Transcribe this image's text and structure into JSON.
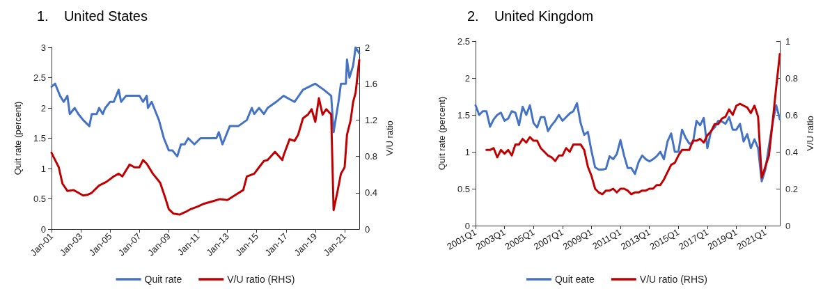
{
  "chart_data": [
    {
      "type": "line",
      "title": "1.    United States",
      "ylabel": "Quit rate (percent)",
      "y2label": "V/U ratio",
      "legend": "bottom",
      "grid": false,
      "marker": "none",
      "line_style": "solid",
      "xlim": [
        "2001-01",
        "2022-01"
      ],
      "xticks": [
        {
          "value": "2001-01",
          "label": "Jan-01"
        },
        {
          "value": "2003-01",
          "label": "Jan-03"
        },
        {
          "value": "2005-01",
          "label": "Jan-05"
        },
        {
          "value": "2007-01",
          "label": "Jan-07"
        },
        {
          "value": "2009-01",
          "label": "Jan-09"
        },
        {
          "value": "2011-01",
          "label": "Jan-11"
        },
        {
          "value": "2013-01",
          "label": "Jan-13"
        },
        {
          "value": "2015-01",
          "label": "Jan-15"
        },
        {
          "value": "2017-01",
          "label": "Jan-17"
        },
        {
          "value": "2019-01",
          "label": "Jan-19"
        },
        {
          "value": "2021-01",
          "label": "Jan-21"
        }
      ],
      "ylim": [
        0,
        3
      ],
      "yticks": [
        0,
        0.5,
        1,
        1.5,
        2,
        2.5,
        3
      ],
      "y2lim": [
        0,
        2
      ],
      "y2ticks": [
        0,
        0.4,
        0.8,
        1.2,
        1.6,
        2
      ],
      "series": [
        {
          "name": "Quit rate",
          "color": "#4472c4",
          "x": [
            "2001-01",
            "2001-04",
            "2001-08",
            "2001-11",
            "2002-02",
            "2002-04",
            "2002-08",
            "2002-11",
            "2003-03",
            "2003-08",
            "2003-10",
            "2004-02",
            "2004-04",
            "2004-07",
            "2004-09",
            "2005-01",
            "2005-04",
            "2005-08",
            "2005-10",
            "2006-02",
            "2006-05",
            "2006-09",
            "2007-01",
            "2007-04",
            "2007-07",
            "2007-08",
            "2007-11",
            "2008-03",
            "2008-05",
            "2008-09",
            "2009-01",
            "2009-04",
            "2009-08",
            "2009-11",
            "2010-02",
            "2010-05",
            "2010-10",
            "2011-03",
            "2011-09",
            "2012-04",
            "2012-06",
            "2012-09",
            "2013-03",
            "2013-10",
            "2014-05",
            "2014-09",
            "2014-11",
            "2015-03",
            "2015-07",
            "2015-10",
            "2016-05",
            "2016-11",
            "2017-08",
            "2018-03",
            "2019-01",
            "2019-08",
            "2020-02",
            "2020-04",
            "2020-08",
            "2020-10",
            "2021-02",
            "2021-03",
            "2021-05",
            "2021-08",
            "2021-10",
            "2022-01"
          ],
          "values": [
            2.35,
            2.4,
            2.2,
            2.1,
            2.2,
            1.9,
            2.0,
            1.9,
            1.8,
            1.7,
            1.9,
            1.9,
            2.0,
            1.9,
            2.0,
            2.1,
            2.1,
            2.3,
            2.1,
            2.2,
            2.2,
            2.2,
            2.2,
            2.1,
            2.2,
            2.0,
            2.1,
            1.9,
            1.8,
            1.5,
            1.3,
            1.3,
            1.2,
            1.4,
            1.4,
            1.5,
            1.4,
            1.5,
            1.5,
            1.5,
            1.6,
            1.4,
            1.7,
            1.7,
            1.8,
            2.0,
            1.9,
            2.0,
            1.9,
            2.0,
            2.1,
            2.2,
            2.1,
            2.3,
            2.4,
            2.3,
            2.2,
            1.6,
            2.1,
            2.4,
            2.4,
            2.8,
            2.5,
            2.7,
            3.0,
            2.9
          ]
        },
        {
          "name": "V/U ratio (RHS)",
          "color": "#c00000",
          "axis": "y2",
          "x": [
            "2001-01",
            "2001-04",
            "2001-07",
            "2001-10",
            "2002-02",
            "2002-07",
            "2002-11",
            "2003-03",
            "2003-07",
            "2003-10",
            "2004-04",
            "2004-10",
            "2005-04",
            "2005-08",
            "2005-11",
            "2006-05",
            "2006-09",
            "2007-01",
            "2007-04",
            "2007-07",
            "2007-12",
            "2008-06",
            "2008-10",
            "2009-01",
            "2009-05",
            "2009-10",
            "2010-03",
            "2010-07",
            "2011-01",
            "2011-06",
            "2012-02",
            "2012-07",
            "2013-01",
            "2013-08",
            "2014-02",
            "2014-05",
            "2014-11",
            "2015-03",
            "2015-07",
            "2015-10",
            "2016-04",
            "2016-10",
            "2016-11",
            "2017-04",
            "2017-08",
            "2017-11",
            "2018-03",
            "2018-07",
            "2018-10",
            "2019-01",
            "2019-04",
            "2019-07",
            "2019-10",
            "2020-02",
            "2020-04",
            "2020-07",
            "2020-10",
            "2021-01",
            "2021-03",
            "2021-06",
            "2021-08",
            "2021-10",
            "2022-01"
          ],
          "values": [
            0.84,
            0.76,
            0.68,
            0.5,
            0.42,
            0.43,
            0.4,
            0.37,
            0.38,
            0.4,
            0.48,
            0.52,
            0.58,
            0.61,
            0.58,
            0.71,
            0.68,
            0.68,
            0.76,
            0.72,
            0.61,
            0.51,
            0.35,
            0.22,
            0.17,
            0.16,
            0.19,
            0.22,
            0.25,
            0.28,
            0.31,
            0.33,
            0.32,
            0.38,
            0.43,
            0.58,
            0.61,
            0.68,
            0.75,
            0.76,
            0.85,
            0.76,
            0.81,
            0.99,
            0.97,
            1.04,
            1.22,
            1.26,
            1.32,
            1.18,
            1.44,
            1.26,
            1.32,
            1.26,
            0.21,
            0.4,
            0.61,
            0.68,
            1.04,
            1.2,
            1.4,
            1.5,
            1.86
          ]
        }
      ]
    },
    {
      "type": "line",
      "title": "2.    United Kingdom",
      "ylabel": "Quit rate (percent)",
      "y2label": "V/U ratio",
      "legend": "bottom",
      "grid": false,
      "marker": "none",
      "line_style": "solid",
      "categories": [
        "2001Q1",
        null,
        null,
        null,
        null,
        null,
        null,
        null,
        "2003Q1",
        null,
        null,
        null,
        null,
        null,
        null,
        null,
        "2005Q1",
        null,
        null,
        null,
        null,
        null,
        null,
        null,
        "2007Q1",
        null,
        null,
        null,
        null,
        null,
        null,
        null,
        "2009Q1",
        null,
        null,
        null,
        null,
        null,
        null,
        null,
        "2011Q1",
        null,
        null,
        null,
        null,
        null,
        null,
        null,
        "2013Q1",
        null,
        null,
        null,
        null,
        null,
        null,
        null,
        "2015Q1",
        null,
        null,
        null,
        null,
        null,
        null,
        null,
        "2017Q1",
        null,
        null,
        null,
        null,
        null,
        null,
        null,
        "2019Q1",
        null,
        null,
        null,
        null,
        null,
        null,
        null,
        "2021Q1",
        null,
        null,
        null,
        null
      ],
      "ylim": [
        0,
        2.5
      ],
      "yticks": [
        0,
        0.5,
        1,
        1.5,
        2,
        2.5
      ],
      "y2lim": [
        0,
        1
      ],
      "y2ticks": [
        0,
        0.2,
        0.4,
        0.6,
        0.8,
        1
      ],
      "series": [
        {
          "name": "Quit eate",
          "color": "#4472c4",
          "values": [
            1.63,
            1.5,
            1.55,
            1.55,
            1.34,
            1.44,
            1.5,
            1.53,
            1.42,
            1.45,
            1.55,
            1.53,
            1.36,
            1.61,
            1.5,
            1.63,
            1.39,
            1.33,
            1.47,
            1.47,
            1.28,
            1.36,
            1.42,
            1.5,
            1.42,
            1.47,
            1.52,
            1.55,
            1.66,
            1.39,
            1.23,
            1.27,
            1.01,
            0.79,
            0.76,
            0.76,
            0.77,
            0.94,
            0.9,
            0.97,
            1.16,
            0.95,
            0.78,
            0.78,
            0.7,
            0.86,
            0.95,
            0.9,
            0.87,
            0.9,
            0.94,
            1.0,
            0.9,
            1.14,
            1.25,
            1.0,
            1.0,
            1.3,
            1.19,
            1.11,
            1.12,
            1.42,
            1.36,
            1.46,
            1.05,
            1.28,
            1.33,
            1.42,
            1.41,
            1.38,
            1.47,
            1.3,
            1.3,
            1.38,
            1.14,
            1.24,
            1.05,
            1.17,
            1.05,
            0.6,
            0.76,
            1.08,
            1.39,
            1.63,
            1.44
          ]
        },
        {
          "name": "V/U ratio (RHS)",
          "color": "#c00000",
          "axis": "y2",
          "values": [
            null,
            null,
            null,
            0.41,
            0.41,
            0.42,
            0.37,
            0.41,
            0.39,
            0.41,
            0.38,
            0.44,
            0.44,
            0.47,
            0.45,
            0.48,
            0.46,
            0.46,
            0.42,
            0.4,
            0.38,
            0.37,
            0.35,
            0.38,
            0.38,
            0.42,
            0.4,
            0.44,
            0.44,
            0.44,
            0.41,
            0.32,
            0.27,
            0.2,
            0.18,
            0.17,
            0.19,
            0.19,
            0.2,
            0.18,
            0.2,
            0.2,
            0.19,
            0.17,
            0.18,
            0.18,
            0.19,
            0.19,
            0.2,
            0.2,
            0.22,
            0.22,
            0.25,
            0.29,
            0.33,
            0.34,
            0.38,
            0.41,
            0.41,
            0.41,
            0.46,
            0.46,
            0.47,
            0.45,
            0.49,
            0.51,
            0.55,
            0.55,
            0.58,
            0.59,
            0.63,
            0.6,
            0.65,
            0.66,
            0.65,
            0.64,
            0.61,
            0.65,
            0.59,
            0.26,
            0.32,
            0.38,
            0.56,
            0.75,
            0.93
          ]
        }
      ]
    }
  ]
}
